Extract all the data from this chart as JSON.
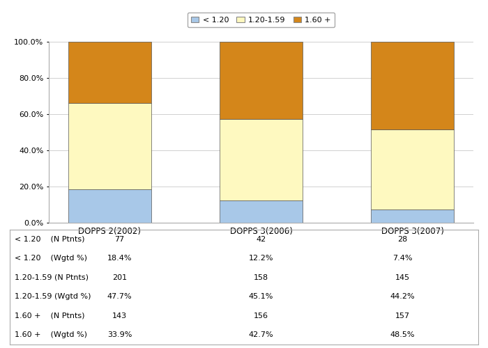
{
  "categories": [
    "DOPPS 2(2002)",
    "DOPPS 3(2006)",
    "DOPPS 3(2007)"
  ],
  "less120": [
    18.4,
    12.2,
    7.4
  ],
  "mid": [
    47.7,
    45.1,
    44.2
  ],
  "high": [
    33.9,
    42.7,
    48.5
  ],
  "color_less120": "#a8c8e8",
  "color_mid": "#fef9c0",
  "color_high": "#d4861a",
  "legend_labels": [
    "< 1.20",
    "1.20-1.59",
    "1.60 +"
  ],
  "table_rows": [
    [
      "< 1.20    (N Ptnts)",
      "77",
      "42",
      "28"
    ],
    [
      "< 1.20    (Wgtd %)",
      "18.4%",
      "12.2%",
      "7.4%"
    ],
    [
      "1.20-1.59 (N Ptnts)",
      "201",
      "158",
      "145"
    ],
    [
      "1.20-1.59 (Wgtd %)",
      "47.7%",
      "45.1%",
      "44.2%"
    ],
    [
      "1.60 +    (N Ptnts)",
      "143",
      "156",
      "157"
    ],
    [
      "1.60 +    (Wgtd %)",
      "33.9%",
      "42.7%",
      "48.5%"
    ]
  ],
  "ylim": [
    0,
    100
  ],
  "yticks": [
    0,
    20,
    40,
    60,
    80,
    100
  ],
  "ytick_labels": [
    "0.0%",
    "20.0%",
    "40.0%",
    "60.0%",
    "80.0%",
    "100.0%"
  ],
  "bg_color": "#ffffff",
  "grid_color": "#d0d0d0",
  "bar_width": 0.55,
  "figwidth": 7.0,
  "figheight": 5.0,
  "dpi": 100
}
